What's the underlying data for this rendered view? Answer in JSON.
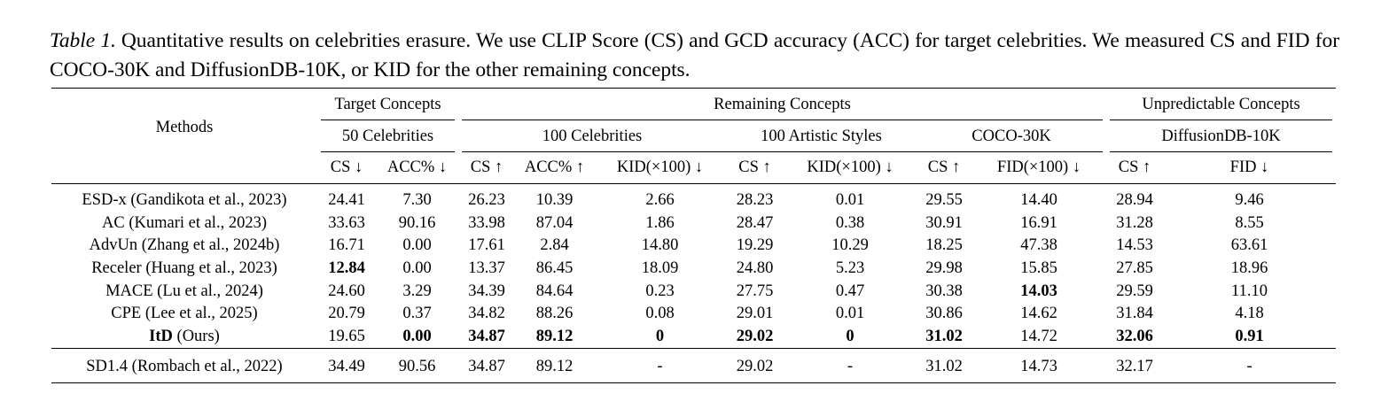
{
  "caption": {
    "label": "Table 1.",
    "text": "Quantitative results on celebrities erasure. We use CLIP Score (CS) and GCD accuracy (ACC) for target celebrities. We measured CS and FID for COCO-30K and DiffusionDB-10K, or KID for the other remaining concepts."
  },
  "header": {
    "methods": "Methods",
    "groups": {
      "target": "Target Concepts",
      "remaining": "Remaining Concepts",
      "unpredictable": "Unpredictable Concepts"
    },
    "subgroups": {
      "target_50": "50 Celebrities",
      "celeb_100": "100 Celebrities",
      "artistic_100": "100 Artistic Styles",
      "coco": "COCO-30K",
      "diffusiondb": "DiffusionDB-10K"
    },
    "metrics": [
      "CS ↓",
      "ACC% ↓",
      "CS ↑",
      "ACC% ↑",
      "KID(×100) ↓",
      "CS ↑",
      "KID(×100) ↓",
      "CS ↑",
      "FID(×100) ↓",
      "CS ↑",
      "FID ↓"
    ]
  },
  "rows": [
    {
      "method": "ESD-x (Gandikota et al., 2023)",
      "method_bold": "",
      "method_rest": "",
      "values": [
        "24.41",
        "7.30",
        "26.23",
        "10.39",
        "2.66",
        "28.23",
        "0.01",
        "29.55",
        "14.40",
        "28.94",
        "9.46"
      ],
      "bold": []
    },
    {
      "method": "AC (Kumari et al., 2023)",
      "method_bold": "",
      "method_rest": "",
      "values": [
        "33.63",
        "90.16",
        "33.98",
        "87.04",
        "1.86",
        "28.47",
        "0.38",
        "30.91",
        "16.91",
        "31.28",
        "8.55"
      ],
      "bold": []
    },
    {
      "method": "AdvUn (Zhang et al., 2024b)",
      "method_bold": "",
      "method_rest": "",
      "values": [
        "16.71",
        "0.00",
        "17.61",
        "2.84",
        "14.80",
        "19.29",
        "10.29",
        "18.25",
        "47.38",
        "14.53",
        "63.61"
      ],
      "bold": []
    },
    {
      "method": "Receler (Huang et al., 2023)",
      "method_bold": "",
      "method_rest": "",
      "values": [
        "12.84",
        "0.00",
        "13.37",
        "86.45",
        "18.09",
        "24.80",
        "5.23",
        "29.98",
        "15.85",
        "27.85",
        "18.96"
      ],
      "bold": [
        0
      ]
    },
    {
      "method": "MACE (Lu et al., 2024)",
      "method_bold": "",
      "method_rest": "",
      "values": [
        "24.60",
        "3.29",
        "34.39",
        "84.64",
        "0.23",
        "27.75",
        "0.47",
        "30.38",
        "14.03",
        "29.59",
        "11.10"
      ],
      "bold": [
        8
      ]
    },
    {
      "method": "CPE (Lee et al., 2025)",
      "method_bold": "",
      "method_rest": "",
      "values": [
        "20.79",
        "0.37",
        "34.82",
        "88.26",
        "0.08",
        "29.01",
        "0.01",
        "30.86",
        "14.62",
        "31.84",
        "4.18"
      ],
      "bold": []
    },
    {
      "method": "",
      "method_bold": "ItD",
      "method_rest": " (Ours)",
      "values": [
        "19.65",
        "0.00",
        "34.87",
        "89.12",
        "0",
        "29.02",
        "0",
        "31.02",
        "14.72",
        "32.06",
        "0.91"
      ],
      "bold": [
        1,
        2,
        3,
        4,
        5,
        6,
        7,
        9,
        10
      ]
    }
  ],
  "baseline": {
    "method": "SD1.4 (Rombach et al., 2022)",
    "values": [
      "34.49",
      "90.56",
      "34.87",
      "89.12",
      "-",
      "29.02",
      "-",
      "31.02",
      "14.73",
      "32.17",
      "-"
    ]
  }
}
